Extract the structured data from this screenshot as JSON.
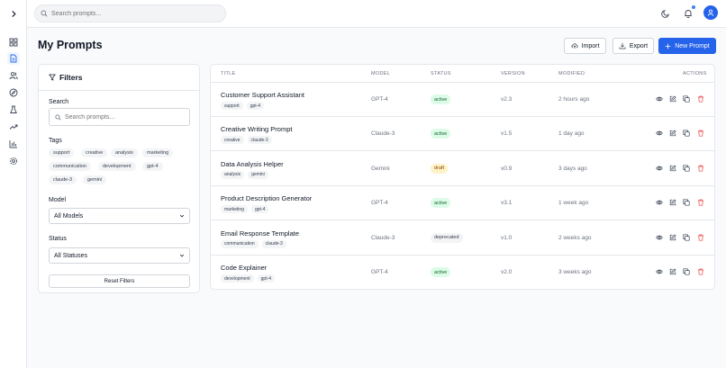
{
  "header": {
    "search_placeholder": "Search prompts...",
    "notification_dot_color": "#3b82f6",
    "avatar_color": "#2563eb"
  },
  "sidebar": {
    "items": [
      {
        "icon": "dashboard-icon"
      },
      {
        "icon": "document-icon",
        "active": true
      },
      {
        "icon": "users-icon"
      },
      {
        "icon": "compass-icon"
      },
      {
        "icon": "flask-icon"
      },
      {
        "icon": "trending-icon"
      },
      {
        "icon": "bar-chart-icon"
      },
      {
        "icon": "settings-icon"
      }
    ]
  },
  "page": {
    "title": "My Prompts",
    "import_label": "Import",
    "export_label": "Export",
    "new_label": "New Prompt"
  },
  "filters": {
    "title": "Filters",
    "search_label": "Search",
    "search_placeholder": "Search prompts...",
    "tags_label": "Tags",
    "tags": [
      "support",
      "creative",
      "analysis",
      "marketing",
      "communication",
      "development",
      "gpt-4",
      "claude-3",
      "gemini"
    ],
    "model_label": "Model",
    "model_value": "All Models",
    "status_label": "Status",
    "status_value": "All Statuses",
    "reset_label": "Reset Filters"
  },
  "table": {
    "columns": [
      "TITLE",
      "MODEL",
      "STATUS",
      "VERSION",
      "MODIFIED",
      "ACTIONS"
    ],
    "rows": [
      {
        "title": "Customer Support Assistant",
        "tags": [
          "support",
          "gpt-4"
        ],
        "model": "GPT-4",
        "status": "active",
        "version": "v2.3",
        "modified": "2 hours ago"
      },
      {
        "title": "Creative Writing Prompt",
        "tags": [
          "creative",
          "claude-3"
        ],
        "model": "Claude-3",
        "status": "active",
        "version": "v1.5",
        "modified": "1 day ago"
      },
      {
        "title": "Data Analysis Helper",
        "tags": [
          "analysis",
          "gemini"
        ],
        "model": "Gemini",
        "status": "draft",
        "version": "v0.9",
        "modified": "3 days ago"
      },
      {
        "title": "Product Description Generator",
        "tags": [
          "marketing",
          "gpt-4"
        ],
        "model": "GPT-4",
        "status": "active",
        "version": "v3.1",
        "modified": "1 week ago"
      },
      {
        "title": "Email Response Template",
        "tags": [
          "communication",
          "claude-3"
        ],
        "model": "Claude-3",
        "status": "deprecated",
        "version": "v1.0",
        "modified": "2 weeks ago"
      },
      {
        "title": "Code Explainer",
        "tags": [
          "development",
          "gpt-4"
        ],
        "model": "GPT-4",
        "status": "active",
        "version": "v2.0",
        "modified": "3 weeks ago"
      }
    ]
  },
  "status_colors": {
    "active": {
      "bg": "#dcfce7",
      "fg": "#166534"
    },
    "draft": {
      "bg": "#fef3c7",
      "fg": "#92400e"
    },
    "deprecated": {
      "bg": "#f3f4f6",
      "fg": "#374151"
    }
  },
  "accent_color": "#2563eb",
  "delete_color": "#ef4444"
}
